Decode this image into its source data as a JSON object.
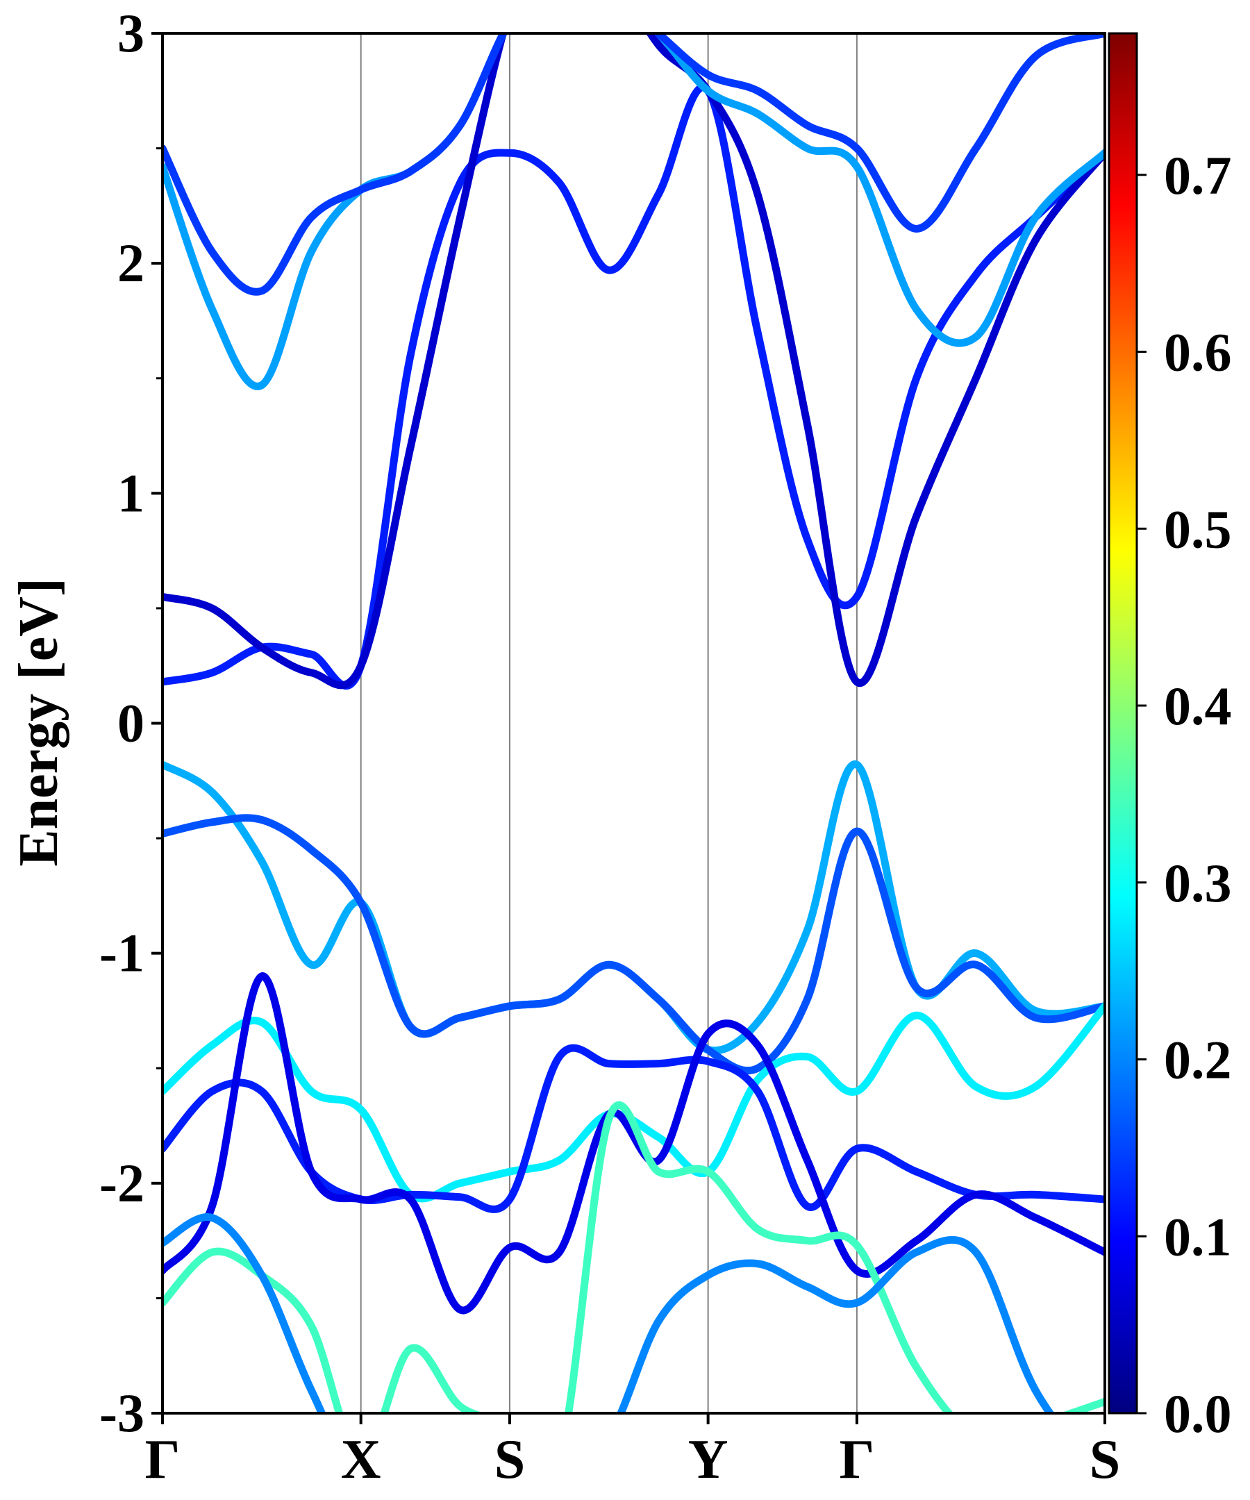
{
  "chart_data": {
    "type": "line",
    "title": "",
    "ylabel": "Energy [eV]",
    "xlabel": "",
    "ylim": [
      -3,
      3
    ],
    "xlim": [
      0,
      4.75
    ],
    "y_ticks": [
      -3,
      -2,
      -1,
      0,
      1,
      2,
      3
    ],
    "y_tick_labels": [
      "-3",
      "-2",
      "-1",
      "0",
      "1",
      "2",
      "3"
    ],
    "k_points": [
      {
        "label": "Γ",
        "x": 0.0
      },
      {
        "label": "X",
        "x": 1.0
      },
      {
        "label": "S",
        "x": 1.75
      },
      {
        "label": "Y",
        "x": 2.75
      },
      {
        "label": "Γ",
        "x": 3.5
      },
      {
        "label": "S",
        "x": 4.75
      }
    ],
    "colorbar": {
      "range": [
        0.0,
        0.78
      ],
      "ticks": [
        0.0,
        0.1,
        0.2,
        0.3,
        0.4,
        0.5,
        0.6,
        0.7
      ],
      "tick_labels": [
        "0.0",
        "0.1",
        "0.2",
        "0.3",
        "0.4",
        "0.5",
        "0.6",
        "0.7"
      ],
      "colormap": "jet"
    },
    "series": [
      {
        "name": "band-c1",
        "weight": 0.12,
        "x": [
          0,
          0.25,
          0.5,
          0.75,
          1.0,
          1.25,
          1.5,
          1.75,
          2.0,
          2.25,
          2.5,
          2.75,
          3.0,
          3.25,
          3.5,
          3.8,
          4.1,
          4.4,
          4.75
        ],
        "y": [
          0.18,
          0.22,
          0.33,
          0.3,
          0.25,
          1.6,
          2.35,
          2.48,
          2.35,
          1.97,
          2.3,
          2.75,
          1.7,
          0.8,
          0.55,
          1.5,
          1.95,
          2.2,
          2.48
        ]
      },
      {
        "name": "band-c2",
        "weight": 0.06,
        "x": [
          0,
          0.25,
          0.5,
          0.75,
          1.0,
          1.25,
          1.5,
          1.75,
          2.0,
          2.25,
          2.5,
          2.75,
          3.0,
          3.25,
          3.5,
          3.8,
          4.1,
          4.4,
          4.75
        ],
        "y": [
          0.55,
          0.5,
          0.33,
          0.22,
          0.25,
          1.2,
          2.2,
          3.1,
          3.6,
          3.3,
          2.95,
          2.75,
          2.3,
          1.3,
          0.18,
          0.9,
          1.5,
          2.1,
          2.48
        ]
      },
      {
        "name": "band-c3",
        "weight": 0.22,
        "x": [
          0,
          0.25,
          0.5,
          0.75,
          1.0,
          1.25,
          1.5,
          1.75,
          2.0,
          2.25,
          2.5,
          2.75,
          3.0,
          3.25,
          3.5,
          3.8,
          4.1,
          4.4,
          4.75
        ],
        "y": [
          2.42,
          1.8,
          1.47,
          2.05,
          2.32,
          2.4,
          2.6,
          3.05,
          3.3,
          3.2,
          3.0,
          2.75,
          2.65,
          2.5,
          2.42,
          1.8,
          1.68,
          2.2,
          2.48
        ]
      },
      {
        "name": "band-c4",
        "weight": 0.14,
        "x": [
          0,
          0.25,
          0.5,
          0.75,
          1.0,
          1.25,
          1.5,
          1.75,
          2.0,
          2.25,
          2.5,
          2.75,
          3.0,
          3.25,
          3.5,
          3.8,
          4.1,
          4.4,
          4.75
        ],
        "y": [
          2.5,
          2.05,
          1.88,
          2.2,
          2.32,
          2.4,
          2.6,
          3.05,
          3.3,
          3.2,
          3.0,
          2.82,
          2.75,
          2.6,
          2.5,
          2.15,
          2.5,
          2.9,
          3.0
        ]
      },
      {
        "name": "band-v1",
        "weight": 0.23,
        "x": [
          0,
          0.25,
          0.5,
          0.75,
          1.0,
          1.25,
          1.5,
          1.75,
          2.0,
          2.25,
          2.5,
          2.75,
          3.0,
          3.25,
          3.5,
          3.8,
          4.1,
          4.4,
          4.75
        ],
        "y": [
          -0.18,
          -0.3,
          -0.6,
          -1.05,
          -0.78,
          -1.32,
          -1.28,
          -1.23,
          -1.2,
          -1.05,
          -1.2,
          -1.42,
          -1.3,
          -0.9,
          -0.18,
          -1.15,
          -1.0,
          -1.25,
          -1.23
        ]
      },
      {
        "name": "band-v2",
        "weight": 0.16,
        "x": [
          0,
          0.25,
          0.5,
          0.75,
          1.0,
          1.25,
          1.5,
          1.75,
          2.0,
          2.25,
          2.5,
          2.75,
          3.0,
          3.25,
          3.5,
          3.8,
          4.1,
          4.4,
          4.75
        ],
        "y": [
          -0.48,
          -0.43,
          -0.42,
          -0.55,
          -0.78,
          -1.32,
          -1.28,
          -1.23,
          -1.2,
          -1.05,
          -1.2,
          -1.42,
          -1.5,
          -1.2,
          -0.47,
          -1.15,
          -1.05,
          -1.28,
          -1.23
        ]
      },
      {
        "name": "band-v3",
        "weight": 0.28,
        "x": [
          0,
          0.25,
          0.5,
          0.75,
          1.0,
          1.25,
          1.5,
          1.75,
          2.0,
          2.25,
          2.5,
          2.75,
          3.0,
          3.25,
          3.5,
          3.8,
          4.1,
          4.4,
          4.75
        ],
        "y": [
          -1.6,
          -1.4,
          -1.3,
          -1.6,
          -1.68,
          -2.05,
          -2.0,
          -1.95,
          -1.9,
          -1.7,
          -1.8,
          -1.95,
          -1.55,
          -1.45,
          -1.6,
          -1.27,
          -1.58,
          -1.58,
          -1.23
        ]
      },
      {
        "name": "band-v4",
        "weight": 0.12,
        "x": [
          0,
          0.25,
          0.5,
          0.75,
          1.0,
          1.25,
          1.5,
          1.75,
          2.0,
          2.25,
          2.5,
          2.75,
          3.0,
          3.25,
          3.5,
          3.8,
          4.1,
          4.4,
          4.75
        ],
        "y": [
          -1.85,
          -1.6,
          -1.6,
          -1.95,
          -2.07,
          -2.05,
          -2.06,
          -2.07,
          -1.45,
          -1.48,
          -1.48,
          -1.47,
          -1.6,
          -2.1,
          -1.85,
          -1.95,
          -2.05,
          -2.05,
          -2.07
        ]
      },
      {
        "name": "band-v5",
        "weight": 0.08,
        "x": [
          0,
          0.25,
          0.5,
          0.75,
          1.0,
          1.25,
          1.5,
          1.75,
          2.0,
          2.25,
          2.5,
          2.75,
          3.0,
          3.25,
          3.5,
          3.8,
          4.1,
          4.4,
          4.75
        ],
        "y": [
          -2.38,
          -2.1,
          -1.1,
          -1.95,
          -2.07,
          -2.07,
          -2.55,
          -2.28,
          -2.3,
          -1.7,
          -1.9,
          -1.35,
          -1.4,
          -1.9,
          -2.38,
          -2.25,
          -2.05,
          -2.15,
          -2.3
        ]
      },
      {
        "name": "band-v6",
        "weight": 0.34,
        "x": [
          0,
          0.25,
          0.5,
          0.75,
          1.0,
          1.25,
          1.5,
          1.75,
          2.0,
          2.25,
          2.5,
          2.75,
          3.0,
          3.25,
          3.5,
          3.8,
          4.1,
          4.4,
          4.75
        ],
        "y": [
          -2.52,
          -2.3,
          -2.4,
          -2.62,
          -3.2,
          -2.72,
          -2.97,
          -3.05,
          -3.2,
          -1.72,
          -1.95,
          -1.95,
          -2.2,
          -2.25,
          -2.27,
          -2.8,
          -3.1,
          -3.05,
          -2.95
        ]
      },
      {
        "name": "band-v7",
        "weight": 0.2,
        "x": [
          0,
          0.25,
          0.5,
          0.75,
          1.0,
          1.25,
          1.5,
          1.75,
          2.0,
          2.25,
          2.5,
          2.75,
          3.0,
          3.25,
          3.5,
          3.8,
          4.1,
          4.4,
          4.75
        ],
        "y": [
          -2.26,
          -2.15,
          -2.4,
          -2.9,
          -3.3,
          -3.2,
          -3.2,
          -3.2,
          -3.2,
          -3.1,
          -2.6,
          -2.4,
          -2.35,
          -2.45,
          -2.52,
          -2.3,
          -2.3,
          -2.9,
          -3.3
        ]
      }
    ]
  }
}
